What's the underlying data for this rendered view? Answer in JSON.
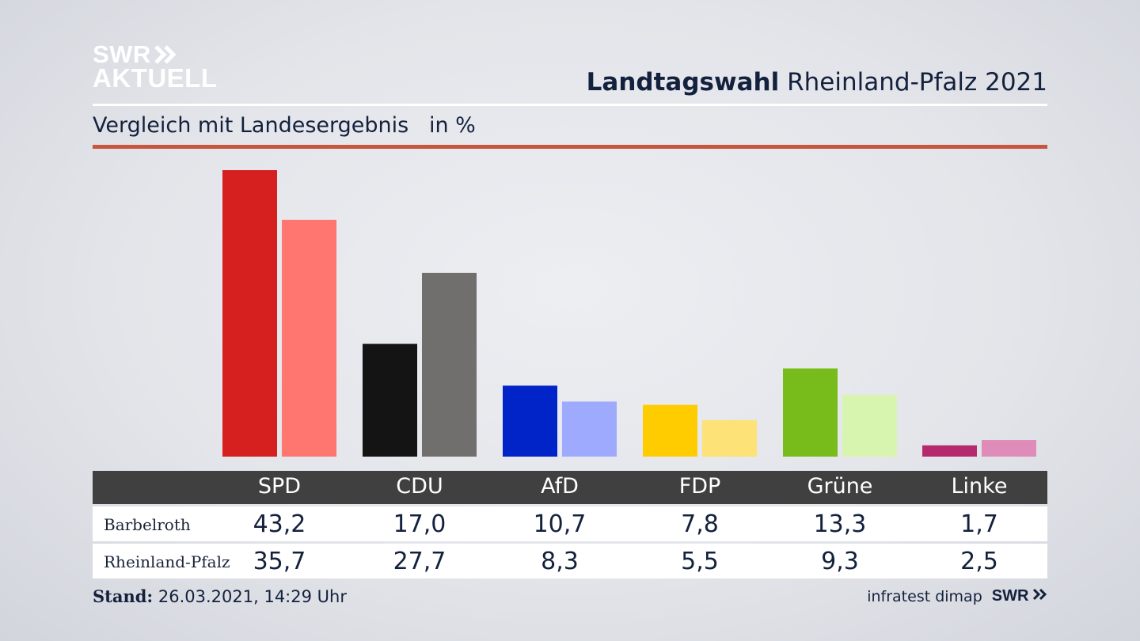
{
  "header": {
    "logo_line1": "SWR",
    "logo_line2": "AKTUELL",
    "title_bold": "Landtagswahl",
    "title_rest": "Rheinland-Pfalz 2021",
    "subtitle": "Vergleich mit Landesergebnis   in %"
  },
  "chart_data": {
    "type": "bar",
    "categories": [
      "SPD",
      "CDU",
      "AfD",
      "FDP",
      "Grüne",
      "Linke"
    ],
    "series": [
      {
        "name": "Barbelroth",
        "values": [
          43.2,
          17.0,
          10.7,
          7.8,
          13.3,
          1.7
        ],
        "labels": [
          "43,2",
          "17,0",
          "10,7",
          "7,8",
          "13,3",
          "1,7"
        ],
        "colors": [
          "#d61f1f",
          "#141414",
          "#0024c8",
          "#ffcc00",
          "#78bc1c",
          "#b52a6e"
        ]
      },
      {
        "name": "Rheinland-Pfalz",
        "values": [
          35.7,
          27.7,
          8.3,
          5.5,
          9.3,
          2.5
        ],
        "labels": [
          "35,7",
          "27,7",
          "8,3",
          "5,5",
          "9,3",
          "2,5"
        ],
        "colors": [
          "#ff7570",
          "#706f6d",
          "#9eaafe",
          "#fde277",
          "#d7f5ae",
          "#df8cb9"
        ]
      }
    ],
    "ylim": [
      0,
      43.2
    ],
    "grid": false,
    "legend": "table-below"
  },
  "footer": {
    "stand_label": "Stand:",
    "stand_value": "26.03.2021, 14:29 Uhr",
    "source": "infratest dimap",
    "brand": "SWR"
  },
  "colors": {
    "accent_red_rule": "#c8553d",
    "table_header": "#404040",
    "text_dark": "#14213d"
  }
}
